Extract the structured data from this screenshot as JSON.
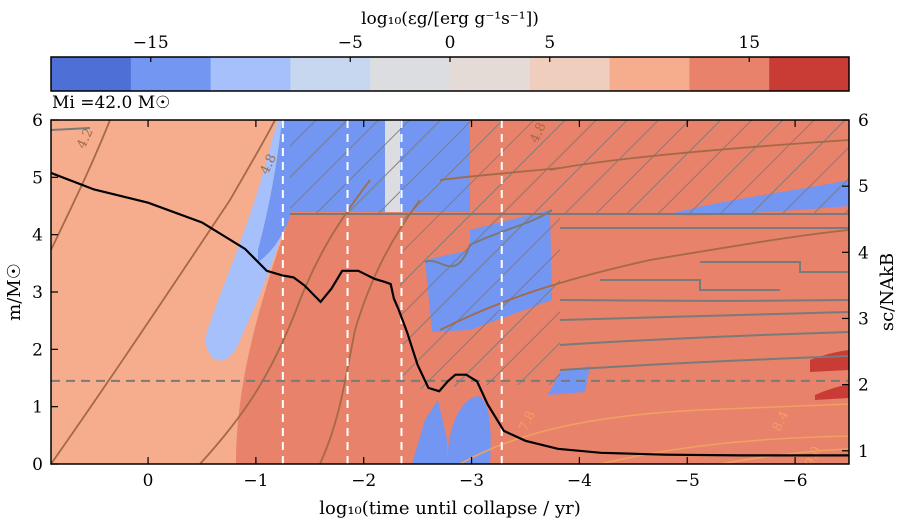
{
  "chart_data": {
    "type": "heatmap",
    "colorbar": {
      "label": "log₁₀(εg/[erg g⁻¹s⁻¹])",
      "range": [
        -20,
        20
      ],
      "ticks": [
        {
          "value": -15,
          "label": "−15"
        },
        {
          "value": -5,
          "label": "−5"
        },
        {
          "value": 0,
          "label": "0"
        },
        {
          "value": 5,
          "label": "5"
        },
        {
          "value": 15,
          "label": "15"
        }
      ],
      "colors": [
        "#4d6fd6",
        "#7396f2",
        "#a5c0fb",
        "#c8d7f0",
        "#dcdde1",
        "#e5dbd6",
        "#efcebd",
        "#f5ad8e",
        "#e8826a",
        "#c93c35"
      ]
    },
    "annotation": "Mi =42.0 M☉",
    "xlabel": "log₁₀(time until collapse / yr)",
    "ylabel": "m/M☉",
    "y2label": "sc/NAkB",
    "xlim": [
      0.9,
      -6.5
    ],
    "ylim": [
      0,
      6
    ],
    "y2lim": [
      0.8,
      6
    ],
    "xticks": [
      {
        "value": 0,
        "label": "0"
      },
      {
        "value": -1,
        "label": "−1"
      },
      {
        "value": -2,
        "label": "−2"
      },
      {
        "value": -3,
        "label": "−3"
      },
      {
        "value": -4,
        "label": "−4"
      },
      {
        "value": -5,
        "label": "−5"
      },
      {
        "value": -6,
        "label": "−6"
      }
    ],
    "yticks": [
      0,
      1,
      2,
      3,
      4,
      5,
      6
    ],
    "y2ticks": [
      1,
      2,
      3,
      4,
      5,
      6
    ],
    "contour_labels": [
      {
        "x": 0.55,
        "y": 5.65,
        "text": "4.2"
      },
      {
        "x": -1.15,
        "y": 5.2,
        "text": "4.8"
      },
      {
        "x": -3.65,
        "y": 5.75,
        "text": "4.8"
      },
      {
        "x": -3.55,
        "y": 0.72,
        "text": "7.8"
      },
      {
        "x": -5.9,
        "y": 0.72,
        "text": "8.4"
      },
      {
        "x": -6.2,
        "y": 0.1,
        "text": "9.0"
      }
    ],
    "vlines": [
      -1.25,
      -1.85,
      -2.35,
      -3.28
    ],
    "hline": 1.45,
    "entropy_series": {
      "name": "sc/NAkB",
      "x": [
        0.9,
        0.5,
        0.0,
        -0.5,
        -0.9,
        -1.1,
        -1.25,
        -1.35,
        -1.45,
        -1.6,
        -1.7,
        -1.8,
        -1.95,
        -2.1,
        -2.2,
        -2.25,
        -2.28,
        -2.32,
        -2.4,
        -2.5,
        -2.6,
        -2.7,
        -2.78,
        -2.85,
        -2.95,
        -3.05,
        -3.15,
        -3.3,
        -3.5,
        -3.8,
        -4.2,
        -4.8,
        -5.5,
        -6.5
      ],
      "y": [
        5.2,
        4.95,
        4.75,
        4.45,
        4.05,
        3.72,
        3.65,
        3.62,
        3.5,
        3.25,
        3.45,
        3.72,
        3.72,
        3.6,
        3.55,
        3.52,
        3.3,
        3.15,
        2.8,
        2.3,
        1.95,
        1.9,
        2.05,
        2.15,
        2.15,
        2.05,
        1.7,
        1.3,
        1.15,
        1.03,
        0.97,
        0.94,
        0.93,
        0.93
      ]
    }
  }
}
